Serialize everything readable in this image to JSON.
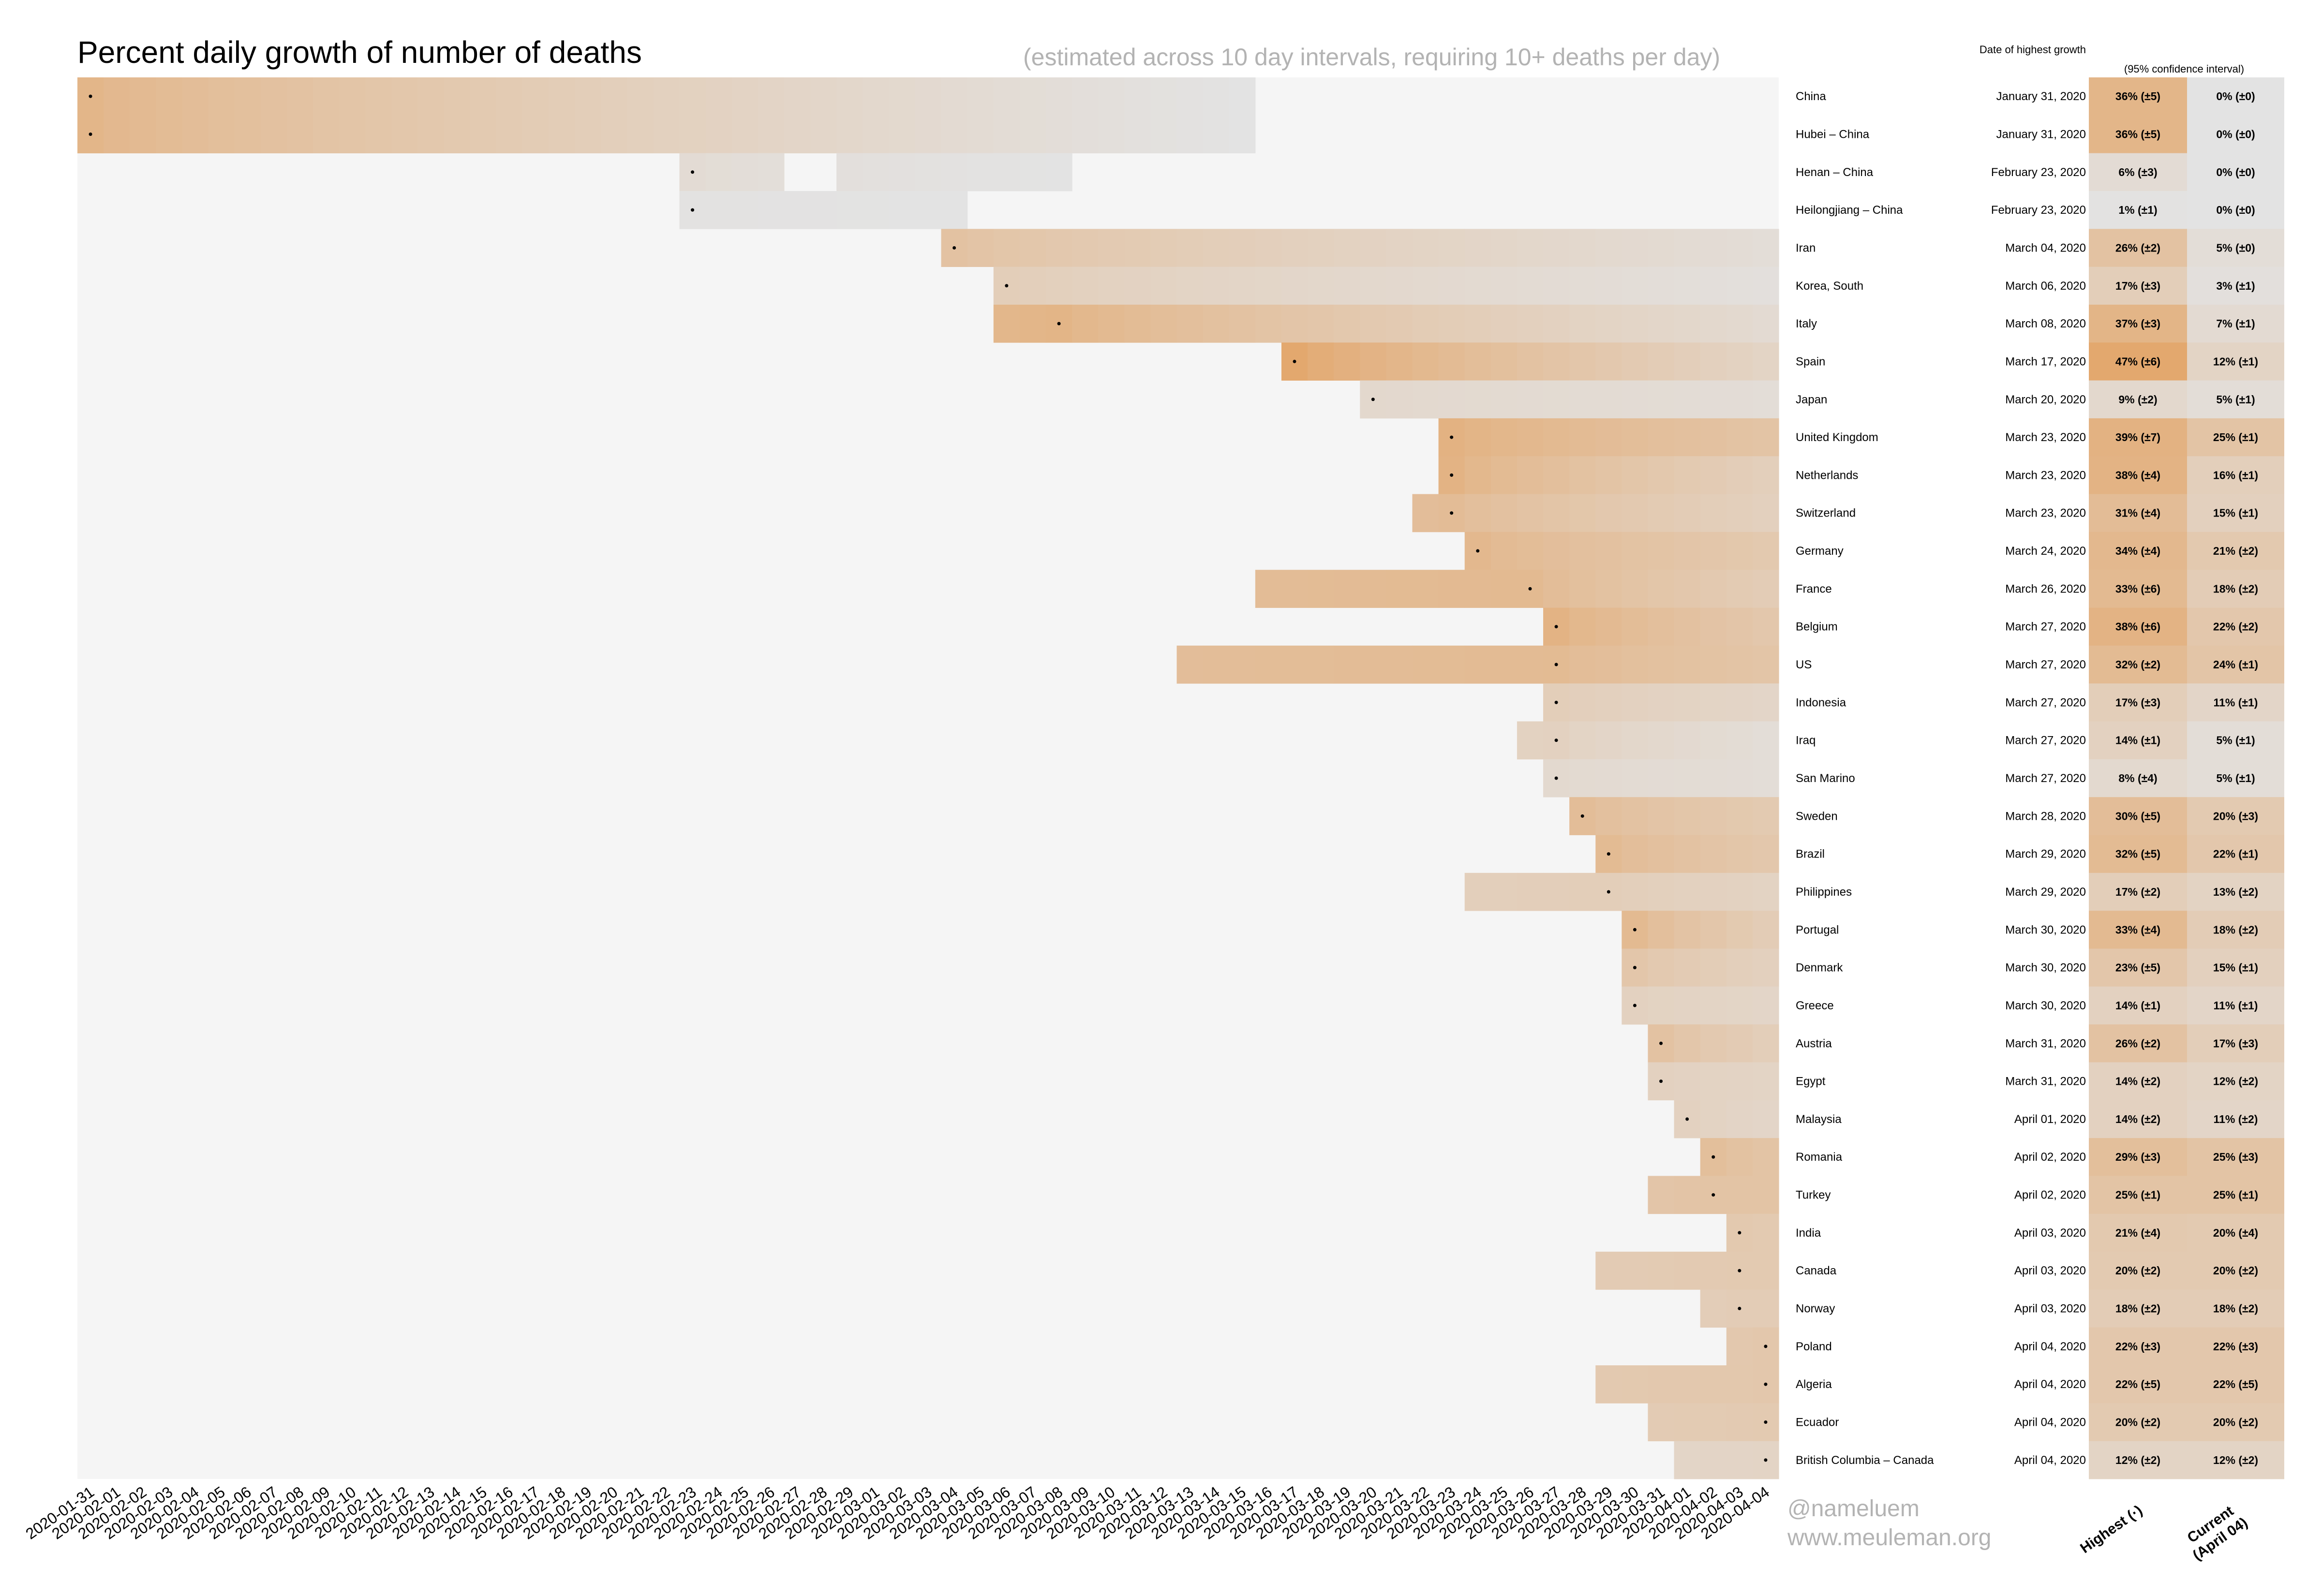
{
  "title": "Percent daily growth of number of deaths",
  "subtitle": "(estimated across 10 day intervals, requiring 10+ deaths per day)",
  "date_header": "Date of highest growth",
  "ci_header": "(95% confidence interval)",
  "col_highest": "Highest (·)",
  "col_current_1": "Current",
  "col_current_2": "(April 04)",
  "credit_handle": "@nameluem",
  "credit_site": "www.meuleman.org",
  "colors": {
    "panel_bg": "#f5f5f5",
    "low": "#e3e3e3",
    "high": "#e3a86e"
  },
  "chart_data": {
    "type": "heatmap",
    "x_dates": [
      "2020-01-31",
      "2020-02-01",
      "2020-02-02",
      "2020-02-03",
      "2020-02-04",
      "2020-02-05",
      "2020-02-06",
      "2020-02-07",
      "2020-02-08",
      "2020-02-09",
      "2020-02-10",
      "2020-02-11",
      "2020-02-12",
      "2020-02-13",
      "2020-02-14",
      "2020-02-15",
      "2020-02-16",
      "2020-02-17",
      "2020-02-18",
      "2020-02-19",
      "2020-02-20",
      "2020-02-21",
      "2020-02-22",
      "2020-02-23",
      "2020-02-24",
      "2020-02-25",
      "2020-02-26",
      "2020-02-27",
      "2020-02-28",
      "2020-02-29",
      "2020-03-01",
      "2020-03-02",
      "2020-03-03",
      "2020-03-04",
      "2020-03-05",
      "2020-03-06",
      "2020-03-07",
      "2020-03-08",
      "2020-03-09",
      "2020-03-10",
      "2020-03-11",
      "2020-03-12",
      "2020-03-13",
      "2020-03-14",
      "2020-03-15",
      "2020-03-16",
      "2020-03-17",
      "2020-03-18",
      "2020-03-19",
      "2020-03-20",
      "2020-03-21",
      "2020-03-22",
      "2020-03-23",
      "2020-03-24",
      "2020-03-25",
      "2020-03-26",
      "2020-03-27",
      "2020-03-28",
      "2020-03-29",
      "2020-03-30",
      "2020-03-31",
      "2020-04-01",
      "2020-04-02",
      "2020-04-03",
      "2020-04-04"
    ],
    "rows": [
      {
        "name": "China",
        "start": "2020-01-31",
        "end": "2020-03-15",
        "peak_date": "2020-01-31",
        "date_label": "January 31, 2020",
        "highest": 36,
        "highest_label": "36% (±5)",
        "current": 0,
        "current_label": "0% (±0)"
      },
      {
        "name": "Hubei – China",
        "start": "2020-01-31",
        "end": "2020-03-15",
        "peak_date": "2020-01-31",
        "date_label": "January 31, 2020",
        "highest": 36,
        "highest_label": "36% (±5)",
        "current": 0,
        "current_label": "0% (±0)"
      },
      {
        "name": "Henan – China",
        "start": "2020-02-23",
        "end": "2020-03-08",
        "gap": [
          "2020-02-27",
          "2020-02-28"
        ],
        "peak_date": "2020-02-23",
        "date_label": "February 23, 2020",
        "highest": 6,
        "highest_label": "6% (±3)",
        "current": 0,
        "current_label": "0% (±0)"
      },
      {
        "name": "Heilongjiang – China",
        "start": "2020-02-23",
        "end": "2020-03-04",
        "peak_date": "2020-02-23",
        "date_label": "February 23, 2020",
        "highest": 1,
        "highest_label": "1% (±1)",
        "current": 0,
        "current_label": "0% (±0)"
      },
      {
        "name": "Iran",
        "start": "2020-03-04",
        "end": "2020-04-04",
        "peak_date": "2020-03-04",
        "date_label": "March 04, 2020",
        "highest": 26,
        "highest_label": "26% (±2)",
        "current": 5,
        "current_label": "5% (±0)"
      },
      {
        "name": "Korea, South",
        "start": "2020-03-06",
        "end": "2020-04-04",
        "peak_date": "2020-03-06",
        "date_label": "March 06, 2020",
        "highest": 17,
        "highest_label": "17% (±3)",
        "current": 3,
        "current_label": "3% (±1)"
      },
      {
        "name": "Italy",
        "start": "2020-03-06",
        "end": "2020-04-04",
        "peak_date": "2020-03-08",
        "date_label": "March 08, 2020",
        "highest": 37,
        "highest_label": "37% (±3)",
        "current": 7,
        "current_label": "7% (±1)"
      },
      {
        "name": "Spain",
        "start": "2020-03-17",
        "end": "2020-04-04",
        "peak_date": "2020-03-17",
        "date_label": "March 17, 2020",
        "highest": 47,
        "highest_label": "47% (±6)",
        "current": 12,
        "current_label": "12% (±1)"
      },
      {
        "name": "Japan",
        "start": "2020-03-20",
        "end": "2020-04-04",
        "peak_date": "2020-03-20",
        "date_label": "March 20, 2020",
        "highest": 9,
        "highest_label": "9% (±2)",
        "current": 5,
        "current_label": "5% (±1)"
      },
      {
        "name": "United Kingdom",
        "start": "2020-03-23",
        "end": "2020-04-04",
        "peak_date": "2020-03-23",
        "date_label": "March 23, 2020",
        "highest": 39,
        "highest_label": "39% (±7)",
        "current": 25,
        "current_label": "25% (±1)"
      },
      {
        "name": "Netherlands",
        "start": "2020-03-23",
        "end": "2020-04-04",
        "peak_date": "2020-03-23",
        "date_label": "March 23, 2020",
        "highest": 38,
        "highest_label": "38% (±4)",
        "current": 16,
        "current_label": "16% (±1)"
      },
      {
        "name": "Switzerland",
        "start": "2020-03-22",
        "end": "2020-04-04",
        "peak_date": "2020-03-23",
        "date_label": "March 23, 2020",
        "highest": 31,
        "highest_label": "31% (±4)",
        "current": 15,
        "current_label": "15% (±1)"
      },
      {
        "name": "Germany",
        "start": "2020-03-24",
        "end": "2020-04-04",
        "peak_date": "2020-03-24",
        "date_label": "March 24, 2020",
        "highest": 34,
        "highest_label": "34% (±4)",
        "current": 21,
        "current_label": "21% (±2)"
      },
      {
        "name": "France",
        "start": "2020-03-16",
        "end": "2020-04-04",
        "peak_date": "2020-03-26",
        "date_label": "March 26, 2020",
        "highest": 33,
        "highest_label": "33% (±6)",
        "current": 18,
        "current_label": "18% (±2)"
      },
      {
        "name": "Belgium",
        "start": "2020-03-27",
        "end": "2020-04-04",
        "peak_date": "2020-03-27",
        "date_label": "March 27, 2020",
        "highest": 38,
        "highest_label": "38% (±6)",
        "current": 22,
        "current_label": "22% (±2)"
      },
      {
        "name": "US",
        "start": "2020-03-13",
        "end": "2020-04-04",
        "peak_date": "2020-03-27",
        "date_label": "March 27, 2020",
        "highest": 32,
        "highest_label": "32% (±2)",
        "current": 24,
        "current_label": "24% (±1)"
      },
      {
        "name": "Indonesia",
        "start": "2020-03-27",
        "end": "2020-04-04",
        "peak_date": "2020-03-27",
        "date_label": "March 27, 2020",
        "highest": 17,
        "highest_label": "17% (±3)",
        "current": 11,
        "current_label": "11% (±1)"
      },
      {
        "name": "Iraq",
        "start": "2020-03-26",
        "end": "2020-04-04",
        "peak_date": "2020-03-27",
        "date_label": "March 27, 2020",
        "highest": 14,
        "highest_label": "14% (±1)",
        "current": 5,
        "current_label": "5% (±1)"
      },
      {
        "name": "San Marino",
        "start": "2020-03-27",
        "end": "2020-04-04",
        "peak_date": "2020-03-27",
        "date_label": "March 27, 2020",
        "highest": 8,
        "highest_label": "8% (±4)",
        "current": 5,
        "current_label": "5% (±1)"
      },
      {
        "name": "Sweden",
        "start": "2020-03-28",
        "end": "2020-04-04",
        "peak_date": "2020-03-28",
        "date_label": "March 28, 2020",
        "highest": 30,
        "highest_label": "30% (±5)",
        "current": 20,
        "current_label": "20% (±3)"
      },
      {
        "name": "Brazil",
        "start": "2020-03-29",
        "end": "2020-04-04",
        "peak_date": "2020-03-29",
        "date_label": "March 29, 2020",
        "highest": 32,
        "highest_label": "32% (±5)",
        "current": 22,
        "current_label": "22% (±1)"
      },
      {
        "name": "Philippines",
        "start": "2020-03-24",
        "end": "2020-04-04",
        "peak_date": "2020-03-29",
        "date_label": "March 29, 2020",
        "highest": 17,
        "highest_label": "17% (±2)",
        "current": 13,
        "current_label": "13% (±2)"
      },
      {
        "name": "Portugal",
        "start": "2020-03-30",
        "end": "2020-04-04",
        "peak_date": "2020-03-30",
        "date_label": "March 30, 2020",
        "highest": 33,
        "highest_label": "33% (±4)",
        "current": 18,
        "current_label": "18% (±2)"
      },
      {
        "name": "Denmark",
        "start": "2020-03-30",
        "end": "2020-04-04",
        "peak_date": "2020-03-30",
        "date_label": "March 30, 2020",
        "highest": 23,
        "highest_label": "23% (±5)",
        "current": 15,
        "current_label": "15% (±1)"
      },
      {
        "name": "Greece",
        "start": "2020-03-30",
        "end": "2020-04-04",
        "peak_date": "2020-03-30",
        "date_label": "March 30, 2020",
        "highest": 14,
        "highest_label": "14% (±1)",
        "current": 11,
        "current_label": "11% (±1)"
      },
      {
        "name": "Austria",
        "start": "2020-03-31",
        "end": "2020-04-04",
        "peak_date": "2020-03-31",
        "date_label": "March 31, 2020",
        "highest": 26,
        "highest_label": "26% (±2)",
        "current": 17,
        "current_label": "17% (±3)"
      },
      {
        "name": "Egypt",
        "start": "2020-03-31",
        "end": "2020-04-04",
        "peak_date": "2020-03-31",
        "date_label": "March 31, 2020",
        "highest": 14,
        "highest_label": "14% (±2)",
        "current": 12,
        "current_label": "12% (±2)"
      },
      {
        "name": "Malaysia",
        "start": "2020-04-01",
        "end": "2020-04-04",
        "peak_date": "2020-04-01",
        "date_label": "April 01, 2020",
        "highest": 14,
        "highest_label": "14% (±2)",
        "current": 11,
        "current_label": "11% (±2)"
      },
      {
        "name": "Romania",
        "start": "2020-04-02",
        "end": "2020-04-04",
        "peak_date": "2020-04-02",
        "date_label": "April 02, 2020",
        "highest": 29,
        "highest_label": "29% (±3)",
        "current": 25,
        "current_label": "25% (±3)"
      },
      {
        "name": "Turkey",
        "start": "2020-03-31",
        "end": "2020-04-04",
        "peak_date": "2020-04-02",
        "date_label": "April 02, 2020",
        "highest": 25,
        "highest_label": "25% (±1)",
        "current": 25,
        "current_label": "25% (±1)"
      },
      {
        "name": "India",
        "start": "2020-04-03",
        "end": "2020-04-04",
        "peak_date": "2020-04-03",
        "date_label": "April 03, 2020",
        "highest": 21,
        "highest_label": "21% (±4)",
        "current": 20,
        "current_label": "20% (±4)"
      },
      {
        "name": "Canada",
        "start": "2020-03-29",
        "end": "2020-04-04",
        "peak_date": "2020-04-03",
        "date_label": "April 03, 2020",
        "highest": 20,
        "highest_label": "20% (±2)",
        "current": 20,
        "current_label": "20% (±2)"
      },
      {
        "name": "Norway",
        "start": "2020-04-02",
        "end": "2020-04-04",
        "peak_date": "2020-04-03",
        "date_label": "April 03, 2020",
        "highest": 18,
        "highest_label": "18% (±2)",
        "current": 18,
        "current_label": "18% (±2)"
      },
      {
        "name": "Poland",
        "start": "2020-04-03",
        "end": "2020-04-04",
        "peak_date": "2020-04-04",
        "date_label": "April 04, 2020",
        "highest": 22,
        "highest_label": "22% (±3)",
        "current": 22,
        "current_label": "22% (±3)"
      },
      {
        "name": "Algeria",
        "start": "2020-03-29",
        "end": "2020-04-04",
        "peak_date": "2020-04-04",
        "date_label": "April 04, 2020",
        "highest": 22,
        "highest_label": "22% (±5)",
        "current": 22,
        "current_label": "22% (±5)"
      },
      {
        "name": "Ecuador",
        "start": "2020-03-31",
        "end": "2020-04-04",
        "peak_date": "2020-04-04",
        "date_label": "April 04, 2020",
        "highest": 20,
        "highest_label": "20% (±2)",
        "current": 20,
        "current_label": "20% (±2)"
      },
      {
        "name": "British Columbia – Canada",
        "start": "2020-04-01",
        "end": "2020-04-04",
        "peak_date": "2020-04-04",
        "date_label": "April 04, 2020",
        "highest": 12,
        "highest_label": "12% (±2)",
        "current": 12,
        "current_label": "12% (±2)"
      }
    ]
  }
}
